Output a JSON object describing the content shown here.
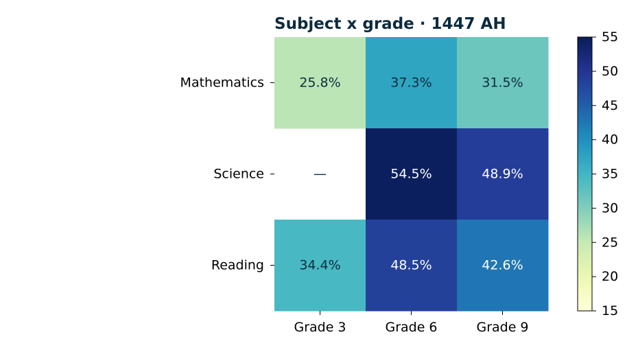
{
  "chart_data": {
    "type": "heatmap",
    "title": "Subject x grade · 1447 AH",
    "xlabel": "",
    "ylabel": "",
    "x_categories": [
      "Grade 3",
      "Grade 6",
      "Grade 9"
    ],
    "y_categories": [
      "Mathematics",
      "Science",
      "Reading"
    ],
    "values": [
      [
        25.8,
        37.3,
        31.5
      ],
      [
        null,
        54.5,
        48.9
      ],
      [
        34.4,
        48.5,
        42.6
      ]
    ],
    "cell_labels": [
      [
        "25.8%",
        "37.3%",
        "31.5%"
      ],
      [
        "—",
        "54.5%",
        "48.9%"
      ],
      [
        "34.4%",
        "48.5%",
        "42.6%"
      ]
    ],
    "missing_label": "—",
    "value_suffix": "%",
    "colorbar": {
      "min": 15,
      "max": 55,
      "ticks": [
        15,
        20,
        25,
        30,
        35,
        40,
        45,
        50,
        55
      ]
    },
    "colormap": "YlGnBu",
    "colors": {
      "title": "#0d2b3e",
      "dark_text": "#0d2b3e",
      "light_text": "#ffffff"
    },
    "grid": false,
    "legend": "colorbar-right"
  }
}
